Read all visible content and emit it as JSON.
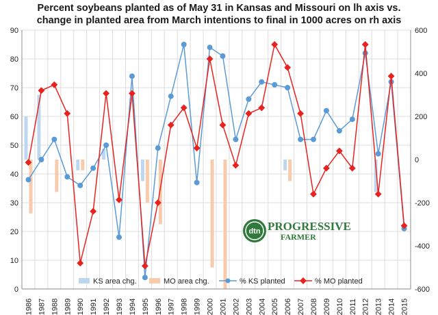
{
  "chart_data": {
    "type": "bar",
    "title_line1": "Percent soybeans planted as of May 31 in Kansas and Missouri on lh axis vs.",
    "title_line2": "change in planted area from March intentions to final in 1000 acres on rh axis",
    "categories": [
      "1986",
      "1987",
      "1988",
      "1989",
      "1990",
      "1991",
      "1992",
      "1993",
      "1994",
      "1995",
      "1996",
      "1997",
      "1998",
      "1999",
      "2000",
      "2001",
      "2002",
      "2003",
      "2004",
      "2005",
      "2006",
      "2007",
      "2008",
      "2009",
      "2010",
      "2011",
      "2012",
      "2013",
      "2014",
      "2015"
    ],
    "left_axis": {
      "min": 0,
      "max": 90,
      "step": 10,
      "ticks": [
        "0",
        "10",
        "20",
        "30",
        "40",
        "50",
        "60",
        "70",
        "80",
        "90"
      ]
    },
    "right_axis": {
      "min": -600,
      "max": 600,
      "step": 200,
      "ticks": [
        "-600",
        "-400",
        "-200",
        "0",
        "200",
        "400",
        "600"
      ]
    },
    "grid": true,
    "legend_position": "bottom",
    "series": [
      {
        "name": "KS area chg.",
        "kind": "bar",
        "axis": "right",
        "color": "#bdd7ee",
        "values": [
          200,
          300,
          0,
          0,
          -50,
          0,
          50,
          0,
          0,
          -100,
          0,
          0,
          0,
          0,
          0,
          0,
          0,
          0,
          0,
          0,
          -50,
          0,
          0,
          0,
          0,
          0,
          0,
          -150,
          0,
          0
        ]
      },
      {
        "name": "MO area chg.",
        "kind": "bar",
        "axis": "right",
        "color": "#f8cbad",
        "values": [
          -250,
          0,
          -150,
          0,
          -50,
          0,
          0,
          0,
          0,
          -200,
          -300,
          0,
          0,
          0,
          -500,
          -600,
          0,
          0,
          0,
          0,
          -100,
          0,
          0,
          0,
          0,
          0,
          0,
          0,
          0,
          0
        ]
      },
      {
        "name": "% KS planted",
        "kind": "line",
        "axis": "left",
        "color": "#5b9bd5",
        "values": [
          38,
          45,
          52,
          39,
          36,
          42,
          50,
          18,
          74,
          4,
          49,
          67,
          85,
          37,
          84,
          81,
          52,
          66,
          72,
          71,
          70,
          52,
          52,
          62,
          55,
          59,
          82,
          47,
          72,
          21
        ]
      },
      {
        "name": "% MO planted",
        "kind": "line",
        "axis": "left",
        "color": "#e8231f",
        "values": [
          44,
          69,
          71,
          61,
          9,
          27,
          68,
          31,
          68,
          8,
          30,
          57,
          63,
          49,
          80,
          57,
          43,
          61,
          63,
          85,
          77,
          61,
          33,
          42,
          48,
          42,
          85,
          33,
          74,
          22
        ]
      }
    ]
  },
  "logo": {
    "badge": "dtn",
    "line1": "PROGRESSIVE",
    "line2": "FARMER"
  }
}
